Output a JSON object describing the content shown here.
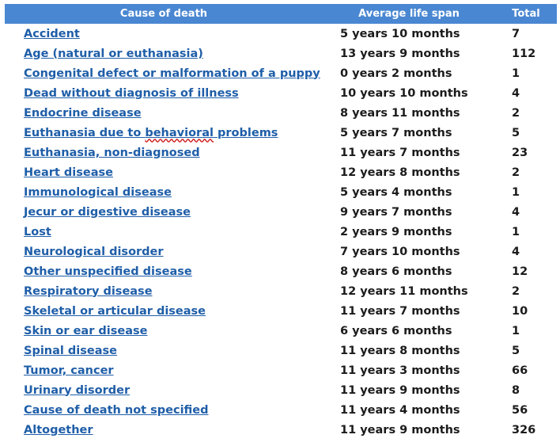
{
  "headers": {
    "cause": "Cause of death",
    "span": "Average life span",
    "total": "Total"
  },
  "rows": [
    {
      "cause": "Accident",
      "span": "5 years 10 months",
      "total": "7"
    },
    {
      "cause": "Age (natural or euthanasia)",
      "span": "13 years 9 months",
      "total": "112"
    },
    {
      "cause": "Congenital defect or malformation of a puppy",
      "span": "0 years 2 months",
      "total": "1"
    },
    {
      "cause": "Dead without diagnosis of illness",
      "span": "10 years 10 months",
      "total": "4"
    },
    {
      "cause": "Endocrine disease",
      "span": "8 years 11 months",
      "total": "2"
    },
    {
      "cause": "Euthanasia due to behavioral problems",
      "span": "5 years 7 months",
      "total": "5"
    },
    {
      "cause": "Euthanasia, non-diagnosed",
      "span": "11 years 7 months",
      "total": "23"
    },
    {
      "cause": "Heart disease",
      "span": "12 years 8 months",
      "total": "2"
    },
    {
      "cause": "Immunological disease",
      "span": "5 years 4 months",
      "total": "1"
    },
    {
      "cause": "Jecur or digestive disease",
      "span": "9 years 7 months",
      "total": "4"
    },
    {
      "cause": "Lost",
      "span": "2 years 9 months",
      "total": "1"
    },
    {
      "cause": "Neurological disorder",
      "span": "7 years 10 months",
      "total": "4"
    },
    {
      "cause": "Other unspecified disease",
      "span": "8 years 6 months",
      "total": "12"
    },
    {
      "cause": "Respiratory disease",
      "span": "12 years 11 months",
      "total": "2"
    },
    {
      "cause": "Skeletal or articular disease",
      "span": "11 years 7 months",
      "total": "10"
    },
    {
      "cause": "Skin or ear disease",
      "span": "6 years 6 months",
      "total": "1"
    },
    {
      "cause": "Spinal disease",
      "span": "11 years 8 months",
      "total": "5"
    },
    {
      "cause": "Tumor, cancer",
      "span": "11 years 3 months",
      "total": "66"
    },
    {
      "cause": "Urinary disorder",
      "span": "11 years 9 months",
      "total": "8"
    },
    {
      "cause": "Cause of death not specified",
      "span": "11 years 4 months",
      "total": "56"
    },
    {
      "cause": "Altogether",
      "span": "11 years 9 months",
      "total": "326"
    }
  ],
  "colors": {
    "header_bg": "#4a87d2",
    "link": "#1f5ea8"
  }
}
